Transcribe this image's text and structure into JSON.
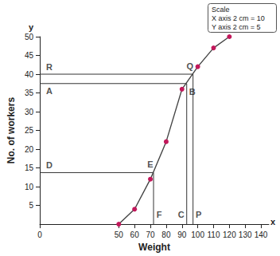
{
  "chart_data": {
    "type": "line",
    "x_label": "Weight",
    "y_label": "No. of workers",
    "axis_letters": {
      "x": "x",
      "y": "y"
    },
    "x": [
      50,
      60,
      70,
      80,
      90,
      100,
      110,
      120
    ],
    "values": [
      0,
      4,
      12,
      22,
      36,
      42,
      47,
      50
    ],
    "color": "#c2185b",
    "marker": "circle",
    "xlim": [
      0,
      145
    ],
    "xticks": [
      0,
      50,
      60,
      70,
      80,
      90,
      100,
      110,
      120,
      130,
      140
    ],
    "ylim": [
      0,
      50
    ],
    "yticks": [
      5,
      10,
      15,
      20,
      25,
      30,
      35,
      40,
      45,
      50
    ],
    "grid": false,
    "reference_lines": [
      {
        "x": 97,
        "y": 40,
        "labels": [
          "R",
          "Q",
          "P"
        ]
      },
      {
        "x": 93,
        "y": 37.5,
        "labels": [
          "A",
          "B",
          "C"
        ]
      },
      {
        "x": 72,
        "y": 13.75,
        "labels": [
          "D",
          "E",
          "F"
        ]
      }
    ],
    "scale_note": [
      "Scale",
      "X axis 2 cm = 10",
      "Y axis 2 cm = 5"
    ]
  }
}
